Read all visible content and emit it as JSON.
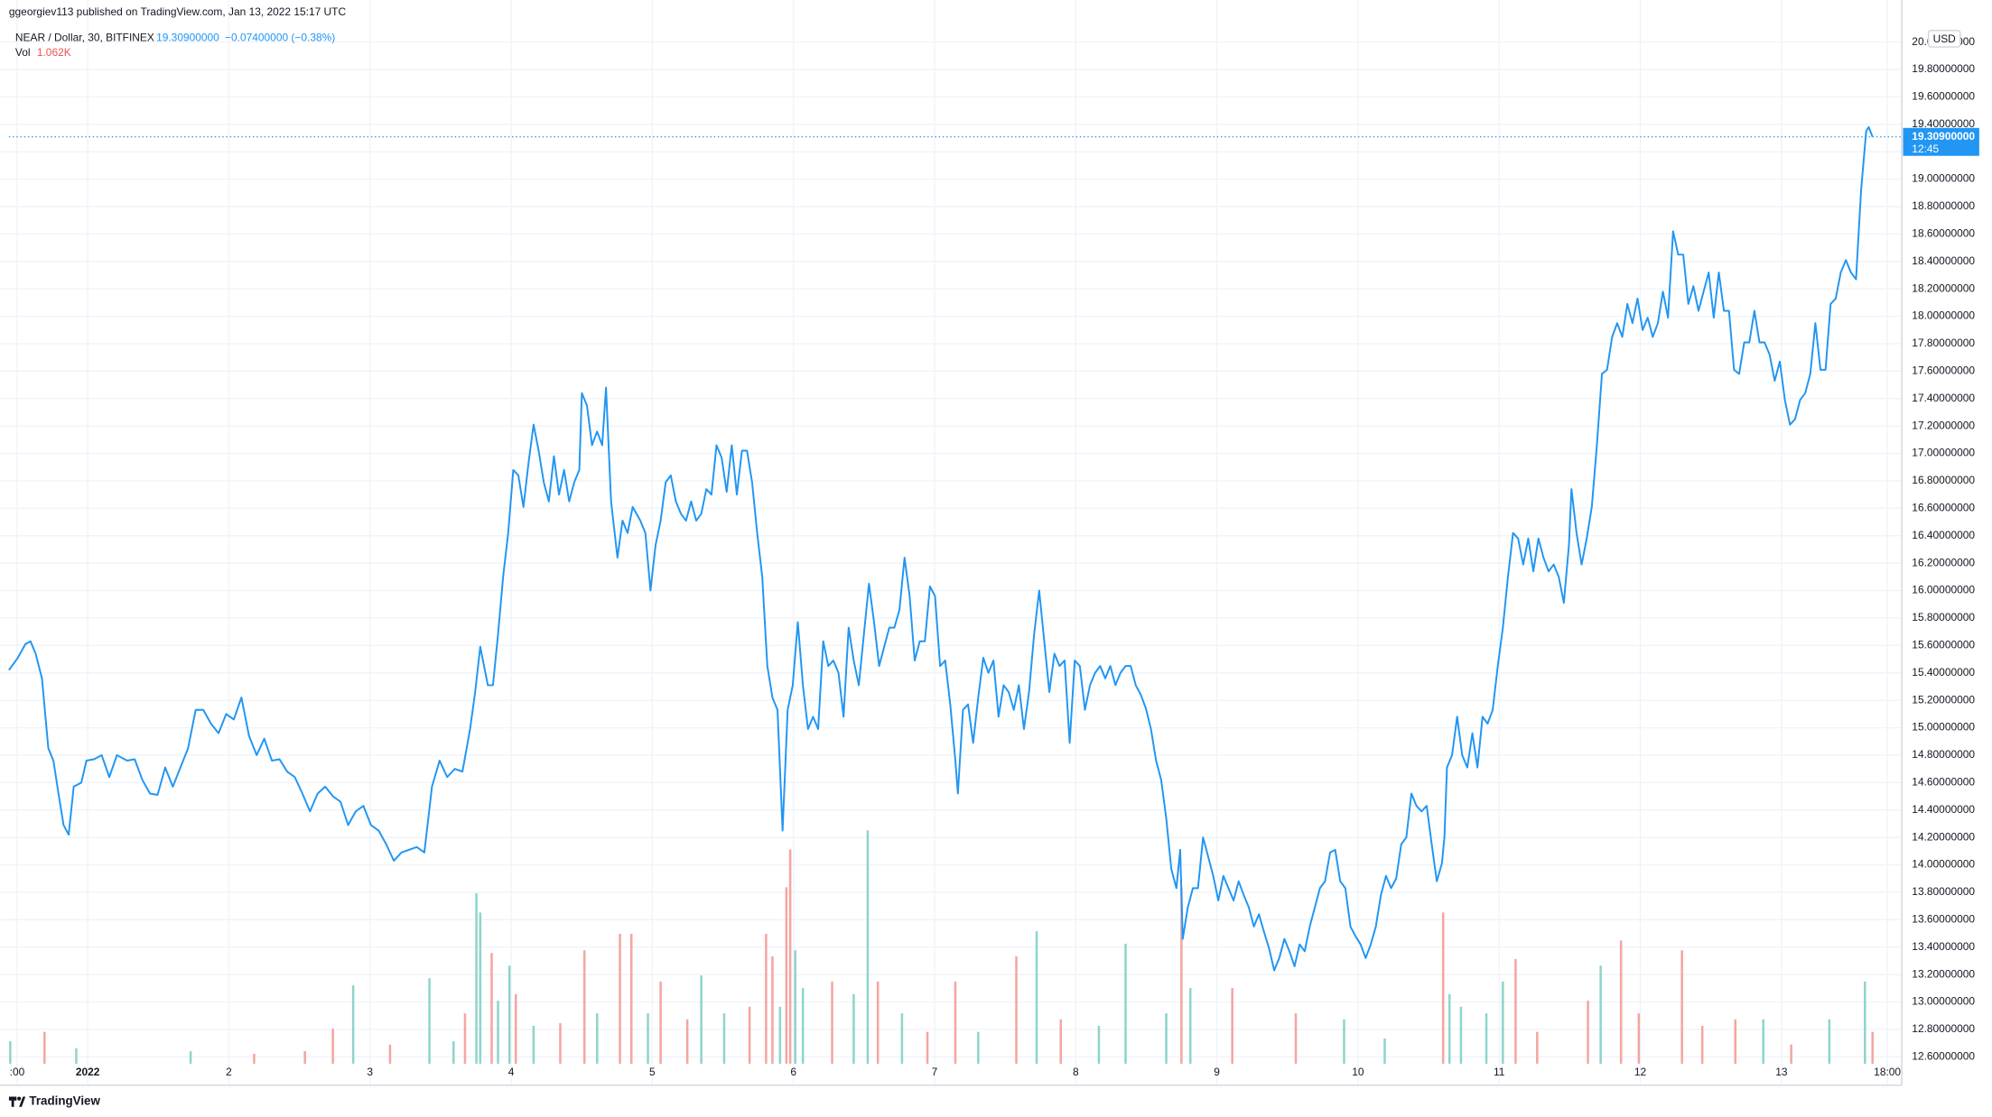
{
  "chart_data": {
    "type": "line",
    "attribution": "ggeorgiev113 published on TradingView.com, Jan 13, 2022 15:17 UTC",
    "title": "NEAR / Dollar, 30, BITFINEX",
    "change": "−0.07400000 (−0.38%)",
    "volume_label": "Vol",
    "volume_last": "1.062K",
    "currency": "USD",
    "countdown": "12:45",
    "brand": "TradingView",
    "color": "#2196f3",
    "grid": true,
    "last_price": {
      "value": 19.309,
      "label": "19.30900000"
    },
    "xlim": [
      0.442,
      13.852
    ],
    "ylim": [
      12.55,
      20.14
    ],
    "y2lim": [
      0,
      19
    ],
    "xticks": [
      {
        "value": 0.5,
        "label": ":00"
      },
      {
        "value": 1,
        "label": "2022"
      },
      2,
      3,
      4,
      5,
      6,
      7,
      8,
      9,
      10,
      11,
      12,
      13,
      {
        "value": 13.75,
        "label": "18:00"
      }
    ],
    "yticks": [
      {
        "value": 12.6,
        "label": "12.60000000"
      },
      {
        "value": 12.8,
        "label": "12.80000000"
      },
      {
        "value": 13.0,
        "label": "13.00000000"
      },
      {
        "value": 13.2,
        "label": "13.20000000"
      },
      {
        "value": 13.4,
        "label": "13.40000000"
      },
      {
        "value": 13.6,
        "label": "13.60000000"
      },
      {
        "value": 13.8,
        "label": "13.80000000"
      },
      {
        "value": 14.0,
        "label": "14.00000000"
      },
      {
        "value": 14.2,
        "label": "14.20000000"
      },
      {
        "value": 14.4,
        "label": "14.40000000"
      },
      {
        "value": 14.6,
        "label": "14.60000000"
      },
      {
        "value": 14.8,
        "label": "14.80000000"
      },
      {
        "value": 15.0,
        "label": "15.00000000"
      },
      {
        "value": 15.2,
        "label": "15.20000000"
      },
      {
        "value": 15.4,
        "label": "15.40000000"
      },
      {
        "value": 15.6,
        "label": "15.60000000"
      },
      {
        "value": 15.8,
        "label": "15.80000000"
      },
      {
        "value": 16.0,
        "label": "16.00000000"
      },
      {
        "value": 16.2,
        "label": "16.20000000"
      },
      {
        "value": 16.4,
        "label": "16.40000000"
      },
      {
        "value": 16.6,
        "label": "16.60000000"
      },
      {
        "value": 16.8,
        "label": "16.80000000"
      },
      {
        "value": 17.0,
        "label": "17.00000000"
      },
      {
        "value": 17.2,
        "label": "17.20000000"
      },
      {
        "value": 17.4,
        "label": "17.40000000"
      },
      {
        "value": 17.6,
        "label": "17.60000000"
      },
      {
        "value": 17.8,
        "label": "17.80000000"
      },
      {
        "value": 18.0,
        "label": "18.00000000"
      },
      {
        "value": 18.2,
        "label": "18.20000000"
      },
      {
        "value": 18.4,
        "label": "18.40000000"
      },
      {
        "value": 18.6,
        "label": "18.60000000"
      },
      {
        "value": 18.8,
        "label": "18.80000000"
      },
      {
        "value": 19.0,
        "label": "19.00000000"
      },
      {
        "value": 19.2,
        "label": "19.20000000"
      },
      {
        "value": 19.4,
        "label": "19.40000000"
      },
      {
        "value": 19.6,
        "label": "19.60000000"
      },
      {
        "value": 19.8,
        "label": "19.80000000"
      },
      {
        "value": 20.0,
        "label": "20.00000000"
      }
    ],
    "x": [
      0.442,
      0.505,
      0.559,
      0.595,
      0.631,
      0.676,
      0.721,
      0.757,
      0.793,
      0.829,
      0.865,
      0.901,
      0.955,
      0.991,
      1.045,
      1.099,
      1.153,
      1.207,
      1.279,
      1.333,
      1.387,
      1.441,
      1.495,
      1.549,
      1.603,
      1.657,
      1.711,
      1.765,
      1.819,
      1.873,
      1.927,
      1.981,
      2.035,
      2.089,
      2.143,
      2.197,
      2.251,
      2.305,
      2.359,
      2.413,
      2.467,
      2.521,
      2.575,
      2.629,
      2.683,
      2.737,
      2.791,
      2.845,
      2.899,
      2.953,
      3.007,
      3.061,
      3.115,
      3.169,
      3.223,
      3.277,
      3.331,
      3.385,
      3.439,
      3.493,
      3.547,
      3.601,
      3.655,
      3.709,
      3.745,
      3.781,
      3.835,
      3.871,
      3.907,
      3.943,
      3.979,
      4.015,
      4.051,
      4.087,
      4.123,
      4.159,
      4.195,
      4.231,
      4.267,
      4.303,
      4.339,
      4.375,
      4.411,
      4.447,
      4.483,
      4.501,
      4.537,
      4.573,
      4.609,
      4.645,
      4.672,
      4.708,
      4.753,
      4.789,
      4.825,
      4.861,
      4.915,
      4.951,
      4.987,
      5.023,
      5.059,
      5.095,
      5.131,
      5.167,
      5.203,
      5.239,
      5.275,
      5.311,
      5.347,
      5.383,
      5.419,
      5.455,
      5.491,
      5.527,
      5.563,
      5.599,
      5.635,
      5.671,
      5.707,
      5.743,
      5.779,
      5.815,
      5.851,
      5.887,
      5.923,
      5.959,
      5.995,
      6.031,
      6.067,
      6.103,
      6.139,
      6.175,
      6.211,
      6.247,
      6.283,
      6.319,
      6.355,
      6.391,
      6.427,
      6.463,
      6.499,
      6.535,
      6.571,
      6.607,
      6.643,
      6.679,
      6.715,
      6.751,
      6.787,
      6.823,
      6.859,
      6.895,
      6.931,
      6.967,
      7.003,
      7.039,
      7.075,
      7.111,
      7.147,
      7.165,
      7.201,
      7.237,
      7.273,
      7.309,
      7.345,
      7.381,
      7.417,
      7.453,
      7.489,
      7.525,
      7.561,
      7.597,
      7.633,
      7.669,
      7.705,
      7.741,
      7.777,
      7.813,
      7.849,
      7.885,
      7.921,
      7.957,
      7.993,
      8.029,
      8.065,
      8.101,
      8.137,
      8.173,
      8.209,
      8.245,
      8.281,
      8.317,
      8.353,
      8.389,
      8.425,
      8.461,
      8.497,
      8.533,
      8.569,
      8.605,
      8.641,
      8.677,
      8.713,
      8.74,
      8.758,
      8.794,
      8.83,
      8.866,
      8.902,
      8.938,
      8.974,
      9.01,
      9.046,
      9.082,
      9.118,
      9.154,
      9.19,
      9.226,
      9.262,
      9.298,
      9.334,
      9.37,
      9.406,
      9.442,
      9.478,
      9.514,
      9.55,
      9.586,
      9.622,
      9.658,
      9.694,
      9.73,
      9.766,
      9.802,
      9.838,
      9.874,
      9.91,
      9.946,
      9.982,
      10.018,
      10.054,
      10.09,
      10.126,
      10.162,
      10.198,
      10.234,
      10.27,
      10.306,
      10.342,
      10.378,
      10.414,
      10.45,
      10.486,
      10.522,
      10.558,
      10.594,
      10.612,
      10.63,
      10.666,
      10.702,
      10.738,
      10.774,
      10.81,
      10.846,
      10.882,
      10.918,
      10.954,
      10.99,
      11.026,
      11.062,
      11.098,
      11.134,
      11.17,
      11.206,
      11.242,
      11.278,
      11.314,
      11.35,
      11.386,
      11.422,
      11.458,
      11.494,
      11.512,
      11.548,
      11.584,
      11.62,
      11.656,
      11.692,
      11.728,
      11.764,
      11.8,
      11.836,
      11.872,
      11.908,
      11.944,
      11.98,
      12.016,
      12.052,
      12.088,
      12.124,
      12.16,
      12.196,
      12.232,
      12.268,
      12.304,
      12.34,
      12.376,
      12.412,
      12.448,
      12.484,
      12.52,
      12.556,
      12.592,
      12.628,
      12.664,
      12.7,
      12.736,
      12.772,
      12.808,
      12.844,
      12.88,
      12.916,
      12.952,
      12.988,
      13.024,
      13.06,
      13.096,
      13.132,
      13.168,
      13.204,
      13.24,
      13.276,
      13.312,
      13.348,
      13.384,
      13.42,
      13.456,
      13.492,
      13.528,
      13.564,
      13.6,
      13.618,
      13.645
    ],
    "values": [
      15.42,
      15.51,
      15.61,
      15.63,
      15.54,
      15.36,
      14.85,
      14.76,
      14.52,
      14.29,
      14.22,
      14.57,
      14.6,
      14.76,
      14.77,
      14.8,
      14.64,
      14.8,
      14.76,
      14.77,
      14.62,
      14.52,
      14.51,
      14.71,
      14.57,
      14.71,
      14.85,
      15.13,
      15.13,
      15.03,
      14.96,
      15.1,
      15.06,
      15.22,
      14.94,
      14.8,
      14.92,
      14.76,
      14.77,
      14.68,
      14.64,
      14.52,
      14.39,
      14.52,
      14.57,
      14.5,
      14.46,
      14.29,
      14.39,
      14.43,
      14.29,
      14.25,
      14.15,
      14.03,
      14.09,
      14.11,
      14.13,
      14.09,
      14.57,
      14.76,
      14.64,
      14.7,
      14.68,
      14.99,
      15.26,
      15.59,
      15.31,
      15.31,
      15.68,
      16.1,
      16.42,
      16.88,
      16.84,
      16.61,
      16.93,
      17.21,
      17.02,
      16.79,
      16.65,
      16.98,
      16.7,
      16.88,
      16.65,
      16.79,
      16.88,
      17.44,
      17.35,
      17.06,
      17.16,
      17.06,
      17.48,
      16.65,
      16.24,
      16.51,
      16.42,
      16.61,
      16.51,
      16.42,
      16.0,
      16.33,
      16.51,
      16.79,
      16.84,
      16.65,
      16.56,
      16.51,
      16.65,
      16.51,
      16.56,
      16.74,
      16.7,
      17.06,
      16.97,
      16.72,
      17.06,
      16.7,
      17.02,
      17.02,
      16.79,
      16.42,
      16.1,
      15.45,
      15.22,
      15.13,
      14.25,
      15.13,
      15.31,
      15.77,
      15.31,
      14.99,
      15.08,
      14.99,
      15.63,
      15.45,
      15.49,
      15.4,
      15.08,
      15.73,
      15.49,
      15.31,
      15.68,
      16.05,
      15.77,
      15.45,
      15.59,
      15.73,
      15.73,
      15.86,
      16.24,
      15.96,
      15.49,
      15.63,
      15.63,
      16.03,
      15.96,
      15.45,
      15.49,
      15.17,
      14.76,
      14.52,
      15.13,
      15.17,
      14.89,
      15.22,
      15.51,
      15.4,
      15.49,
      15.08,
      15.31,
      15.26,
      15.13,
      15.31,
      14.99,
      15.26,
      15.68,
      16.0,
      15.63,
      15.26,
      15.54,
      15.45,
      15.49,
      14.89,
      15.49,
      15.45,
      15.13,
      15.31,
      15.4,
      15.45,
      15.36,
      15.45,
      15.31,
      15.4,
      15.45,
      15.45,
      15.31,
      15.24,
      15.14,
      14.99,
      14.76,
      14.62,
      14.34,
      13.97,
      13.83,
      14.11,
      13.46,
      13.69,
      13.83,
      13.83,
      14.2,
      14.06,
      13.92,
      13.74,
      13.92,
      13.83,
      13.74,
      13.88,
      13.78,
      13.69,
      13.55,
      13.64,
      13.51,
      13.39,
      13.23,
      13.32,
      13.46,
      13.37,
      13.26,
      13.42,
      13.37,
      13.55,
      13.69,
      13.83,
      13.88,
      14.09,
      14.11,
      13.88,
      13.83,
      13.55,
      13.48,
      13.42,
      13.32,
      13.42,
      13.55,
      13.78,
      13.92,
      13.83,
      13.9,
      14.15,
      14.2,
      14.52,
      14.43,
      14.39,
      14.43,
      14.15,
      13.88,
      14.01,
      14.2,
      14.71,
      14.8,
      15.08,
      14.8,
      14.71,
      14.96,
      14.71,
      15.08,
      15.03,
      15.13,
      15.45,
      15.73,
      16.1,
      16.42,
      16.38,
      16.19,
      16.38,
      16.14,
      16.38,
      16.24,
      16.14,
      16.19,
      16.1,
      15.91,
      16.33,
      16.74,
      16.42,
      16.19,
      16.38,
      16.61,
      17.06,
      17.58,
      17.61,
      17.85,
      17.95,
      17.85,
      18.09,
      17.95,
      18.13,
      17.9,
      17.99,
      17.85,
      17.95,
      18.18,
      17.99,
      18.62,
      18.45,
      18.45,
      18.09,
      18.22,
      18.04,
      18.18,
      18.32,
      17.99,
      18.32,
      18.04,
      18.04,
      17.61,
      17.58,
      17.81,
      17.81,
      18.04,
      17.81,
      17.81,
      17.72,
      17.53,
      17.67,
      17.39,
      17.21,
      17.25,
      17.39,
      17.44,
      17.58,
      17.95,
      17.61,
      17.61,
      18.09,
      18.13,
      18.32,
      18.41,
      18.32,
      18.27,
      18.92,
      19.35,
      19.38,
      19.309
    ],
    "volume": [
      {
        "color": "#8fd4cc",
        "x": [
          0.451,
          0.919,
          1.729,
          2.881,
          3.421,
          3.592,
          3.754,
          3.781,
          3.907,
          3.988,
          4.159,
          4.609,
          4.969,
          5.347,
          5.509,
          5.905,
          6.013,
          6.067,
          6.427,
          6.526,
          6.769,
          7.309,
          7.723,
          8.164,
          8.353,
          8.641,
          8.812,
          9.901,
          10.189,
          10.648,
          10.729,
          10.909,
          11.026,
          11.719,
          12.871,
          13.339,
          13.591
        ],
        "values": [
          0.41,
          0.28,
          0.23,
          1.43,
          1.56,
          0.41,
          3.11,
          2.76,
          1.15,
          1.79,
          0.69,
          0.92,
          0.92,
          1.61,
          0.92,
          1.04,
          2.07,
          1.38,
          1.27,
          4.26,
          0.92,
          0.58,
          2.42,
          0.69,
          2.19,
          0.92,
          1.38,
          0.81,
          0.46,
          1.27,
          1.04,
          0.92,
          1.5,
          1.79,
          0.81,
          0.81,
          1.5
        ]
      },
      {
        "color": "#f5a5a1",
        "x": [
          0.694,
          2.179,
          2.539,
          2.737,
          3.142,
          3.673,
          3.862,
          4.033,
          4.348,
          4.519,
          4.771,
          4.852,
          5.059,
          5.248,
          5.689,
          5.806,
          5.851,
          5.95,
          5.977,
          6.274,
          6.598,
          6.949,
          7.147,
          7.579,
          7.894,
          8.749,
          9.109,
          9.559,
          10.603,
          11.116,
          11.269,
          11.629,
          11.863,
          11.989,
          12.295,
          12.439,
          12.673,
          13.069,
          13.645
        ],
        "values": [
          0.58,
          0.18,
          0.23,
          0.64,
          0.35,
          0.92,
          2.02,
          1.27,
          0.74,
          2.07,
          2.37,
          2.37,
          1.5,
          0.81,
          1.04,
          2.37,
          1.96,
          3.22,
          3.91,
          1.5,
          1.5,
          0.58,
          1.5,
          1.96,
          0.81,
          3.22,
          1.38,
          0.92,
          2.76,
          1.91,
          0.58,
          1.15,
          2.25,
          0.92,
          2.07,
          0.69,
          0.81,
          0.35,
          0.58
        ]
      }
    ]
  }
}
